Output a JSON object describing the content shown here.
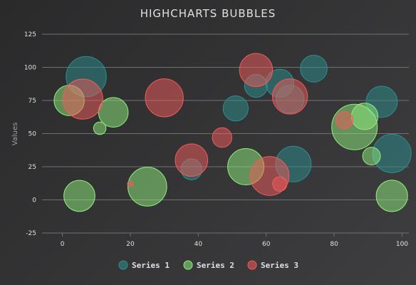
{
  "chart_data": {
    "type": "scatter",
    "variant": "bubble",
    "title": "HIGHCHARTS BUBBLES",
    "xlabel": "",
    "ylabel": "Values",
    "xlim": [
      -6,
      102
    ],
    "ylim": [
      -25,
      125
    ],
    "xticks": [
      0,
      20,
      40,
      60,
      80,
      100
    ],
    "yticks": [
      -25,
      0,
      25,
      50,
      75,
      100,
      125
    ],
    "grid": true,
    "legend_position": "bottom",
    "background_color": "#2b2b2d",
    "series": [
      {
        "name": "Series 1",
        "color": "#2b908f",
        "points": [
          {
            "x": 7,
            "y": 93,
            "z": 92
          },
          {
            "x": 38,
            "y": 23,
            "z": 25
          },
          {
            "x": 51,
            "y": 69,
            "z": 36
          },
          {
            "x": 57,
            "y": 86,
            "z": 30
          },
          {
            "x": 64,
            "y": 88,
            "z": 45
          },
          {
            "x": 67,
            "y": 76,
            "z": 45
          },
          {
            "x": 68,
            "y": 27,
            "z": 72
          },
          {
            "x": 74,
            "y": 99,
            "z": 41
          },
          {
            "x": 94,
            "y": 74,
            "z": 55
          },
          {
            "x": 97,
            "y": 35,
            "z": 84
          }
        ]
      },
      {
        "name": "Series 2",
        "color": "#90ee7e",
        "points": [
          {
            "x": 2,
            "y": 75,
            "z": 52
          },
          {
            "x": 5,
            "y": 3,
            "z": 55
          },
          {
            "x": 11,
            "y": 54,
            "z": 9
          },
          {
            "x": 15,
            "y": 66,
            "z": 50
          },
          {
            "x": 25,
            "y": 10,
            "z": 86
          },
          {
            "x": 54,
            "y": 25,
            "z": 75
          },
          {
            "x": 86,
            "y": 55,
            "z": 118
          },
          {
            "x": 89,
            "y": 63,
            "z": 40
          },
          {
            "x": 91,
            "y": 33,
            "z": 18
          },
          {
            "x": 97,
            "y": 3,
            "z": 56
          }
        ]
      },
      {
        "name": "Series 3",
        "color": "#f45b5b",
        "points": [
          {
            "x": 6,
            "y": 76,
            "z": 91
          },
          {
            "x": 20,
            "y": 12,
            "z": 2
          },
          {
            "x": 30,
            "y": 77,
            "z": 82
          },
          {
            "x": 38,
            "y": 30,
            "z": 60
          },
          {
            "x": 47,
            "y": 47,
            "z": 22
          },
          {
            "x": 57,
            "y": 98,
            "z": 62
          },
          {
            "x": 61,
            "y": 18,
            "z": 86
          },
          {
            "x": 64,
            "y": 12,
            "z": 12
          },
          {
            "x": 67,
            "y": 78,
            "z": 70
          },
          {
            "x": 83,
            "y": 60,
            "z": 17
          }
        ]
      }
    ]
  }
}
